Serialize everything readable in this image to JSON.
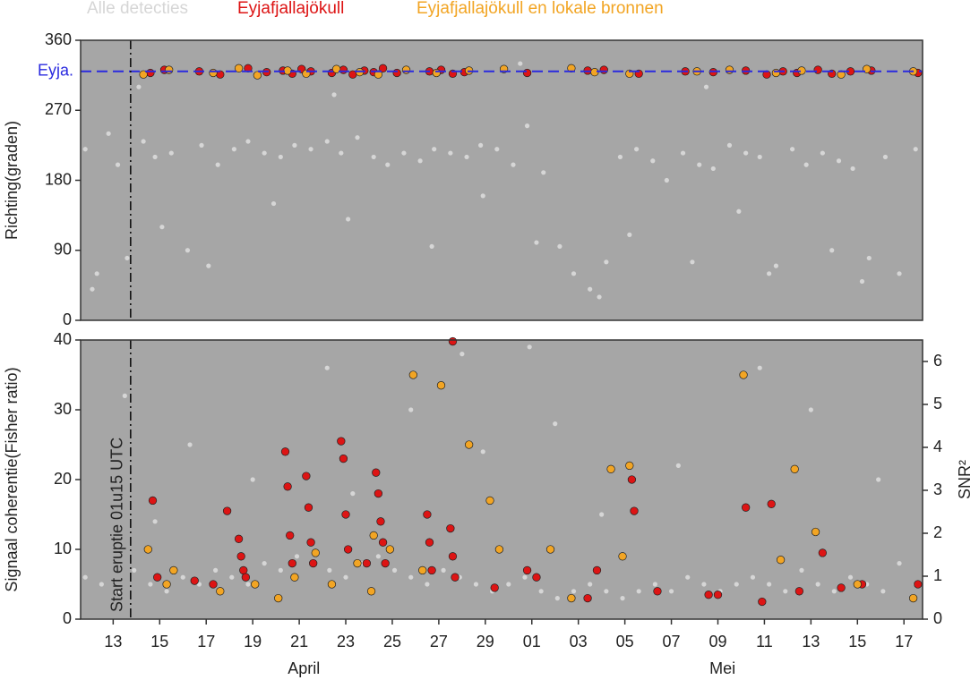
{
  "chart_data": [
    {
      "type": "scatter",
      "ylabel": "Richting(graden)",
      "xlim": [
        11.6,
        47.8
      ],
      "ylim": [
        0,
        360
      ],
      "yticks": [
        0,
        90,
        180,
        270,
        360
      ],
      "background": "#a6a6a6",
      "reference_line": {
        "value": 320,
        "label": "Eyja.",
        "color": "#2a2adf"
      },
      "series": [
        {
          "name": "Alle detecties",
          "color": "#d6d6d6",
          "x": [
            11.8,
            12.3,
            12.8,
            13.2,
            13.6,
            14.3,
            14.8,
            15.5,
            16.2,
            16.8,
            17.5,
            18.2,
            18.8,
            19.5,
            20.2,
            20.8,
            21.5,
            22.2,
            22.8,
            23.5,
            24.2,
            24.8,
            25.5,
            26.2,
            26.8,
            27.5,
            28.2,
            28.8,
            29.5,
            30.2,
            30.8,
            31.5,
            32.2,
            32.8,
            33.5,
            34.2,
            34.8,
            35.5,
            36.2,
            36.8,
            37.5,
            38.2,
            38.8,
            39.5,
            40.2,
            40.8,
            41.5,
            42.2,
            42.8,
            43.5,
            44.2,
            44.8,
            45.5,
            46.2,
            46.8,
            47.5,
            12.1,
            15.1,
            17.1,
            19.9,
            23.1,
            26.7,
            28.9,
            31.2,
            33.9,
            35.2,
            37.9,
            39.9,
            41.2,
            43.9,
            45.2,
            14.1,
            22.5,
            30.5,
            38.5
          ],
          "values": [
            220,
            60,
            240,
            200,
            80,
            230,
            210,
            215,
            90,
            225,
            200,
            220,
            230,
            215,
            210,
            225,
            220,
            230,
            215,
            235,
            210,
            200,
            215,
            205,
            220,
            215,
            210,
            225,
            220,
            200,
            250,
            190,
            95,
            60,
            40,
            75,
            210,
            220,
            205,
            180,
            215,
            200,
            195,
            225,
            215,
            210,
            70,
            220,
            200,
            215,
            205,
            195,
            80,
            210,
            60,
            220,
            40,
            120,
            70,
            150,
            130,
            95,
            160,
            100,
            30,
            110,
            75,
            140,
            60,
            90,
            50,
            300,
            290,
            330,
            300
          ]
        },
        {
          "name": "Eyjafjallajökull",
          "color": "#dd1414",
          "x": [
            14.6,
            15.2,
            16.7,
            17.6,
            18.8,
            19.6,
            20.3,
            20.7,
            21.1,
            21.5,
            22.4,
            22.9,
            23.3,
            23.8,
            24.2,
            24.6,
            25.2,
            26.6,
            27.1,
            27.6,
            28.1,
            30.8,
            33.4,
            34.1,
            35.6,
            37.6,
            38.8,
            40.2,
            41.1,
            41.8,
            42.4,
            43.3,
            43.9,
            44.7,
            45.6,
            47.6
          ],
          "values": [
            318,
            322,
            320,
            316,
            324,
            319,
            321,
            317,
            323,
            320,
            318,
            322,
            316,
            321,
            319,
            324,
            318,
            320,
            322,
            317,
            319,
            318,
            321,
            322,
            317,
            320,
            319,
            321,
            316,
            320,
            318,
            322,
            317,
            320,
            321,
            318
          ]
        },
        {
          "name": "Eyjafjallajökull en lokale bronnen",
          "color": "#f2a524",
          "x": [
            14.3,
            15.4,
            17.3,
            18.4,
            19.2,
            20.5,
            21.3,
            22.6,
            23.6,
            24.4,
            25.6,
            26.9,
            28.3,
            29.8,
            32.7,
            33.7,
            35.2,
            38.1,
            39.5,
            41.5,
            42.6,
            44.3,
            45.4,
            47.4
          ],
          "values": [
            316,
            322,
            318,
            324,
            315,
            321,
            317,
            323,
            319,
            316,
            322,
            318,
            321,
            323,
            324,
            319,
            317,
            320,
            322,
            318,
            321,
            316,
            323,
            320
          ]
        }
      ]
    },
    {
      "type": "scatter",
      "ylabel": "Signaal coherentie(Fisher ratio)",
      "y2label": "SNR²",
      "xlim": [
        11.6,
        47.8
      ],
      "ylim": [
        0,
        40
      ],
      "yticks": [
        0,
        10,
        20,
        30,
        40
      ],
      "y2lim": [
        0,
        6.5
      ],
      "y2ticks": [
        0,
        1,
        2,
        3,
        4,
        5,
        6
      ],
      "xticks": [
        13,
        15,
        17,
        19,
        21,
        23,
        25,
        27,
        29,
        {
          "value": 31,
          "label": "01"
        },
        {
          "value": 33,
          "label": "03"
        },
        {
          "value": 35,
          "label": "05"
        },
        {
          "value": 37,
          "label": "07"
        },
        {
          "value": 39,
          "label": "09"
        },
        {
          "value": 41,
          "label": "11"
        },
        {
          "value": 43,
          "label": "13"
        },
        {
          "value": 45,
          "label": "15"
        },
        {
          "value": 47,
          "label": "17"
        }
      ],
      "month_labels": [
        {
          "text": "April",
          "x": 21.2
        },
        {
          "text": "Mei",
          "x": 39.2
        }
      ],
      "background": "#a6a6a6",
      "vline": {
        "x": 13.75,
        "label": "Start eruptie 01u15 UTC"
      },
      "series": [
        {
          "name": "Alle detecties",
          "color": "#d6d6d6",
          "x": [
            11.8,
            12.5,
            13.2,
            13.9,
            14.6,
            15.3,
            16.0,
            16.7,
            17.4,
            18.1,
            18.8,
            19.5,
            20.2,
            20.9,
            21.6,
            22.3,
            23.0,
            23.7,
            24.4,
            25.1,
            25.8,
            26.5,
            27.2,
            27.9,
            28.6,
            29.3,
            30.0,
            30.7,
            31.4,
            32.1,
            32.8,
            33.5,
            34.2,
            34.9,
            35.6,
            36.3,
            37.0,
            37.7,
            38.4,
            39.1,
            39.8,
            40.5,
            41.2,
            41.9,
            42.6,
            43.3,
            44.0,
            44.7,
            45.4,
            46.1,
            46.8,
            47.5,
            13.5,
            16.3,
            19.0,
            22.2,
            23.3,
            25.8,
            28.0,
            28.9,
            32.0,
            34.0,
            37.3,
            40.8,
            43.0,
            45.9,
            14.8,
            30.9
          ],
          "values": [
            6,
            5,
            4,
            7,
            5,
            4,
            6,
            5,
            7,
            6,
            5,
            8,
            7,
            9,
            8,
            7,
            6,
            8,
            9,
            7,
            6,
            5,
            7,
            6,
            5,
            4,
            5,
            6,
            4,
            3,
            4,
            5,
            4,
            3,
            4,
            5,
            4,
            6,
            5,
            4,
            5,
            6,
            5,
            4,
            7,
            5,
            4,
            6,
            5,
            4,
            8,
            5,
            32,
            25,
            20,
            36,
            18,
            30,
            38,
            24,
            28,
            15,
            22,
            36,
            30,
            20,
            14,
            39
          ]
        },
        {
          "name": "Eyjafjallajökull",
          "color": "#dd1414",
          "x": [
            14.7,
            14.9,
            16.5,
            17.3,
            17.9,
            18.4,
            18.5,
            18.6,
            18.7,
            20.4,
            20.5,
            20.6,
            20.7,
            21.3,
            21.4,
            21.5,
            21.6,
            22.8,
            22.9,
            23.0,
            23.1,
            23.9,
            24.3,
            24.4,
            24.5,
            24.6,
            24.7,
            26.5,
            26.6,
            26.7,
            27.5,
            27.6,
            27.7,
            27.6,
            29.4,
            30.8,
            31.2,
            33.4,
            33.8,
            35.3,
            35.4,
            36.4,
            38.6,
            39.0,
            40.2,
            40.9,
            41.3,
            42.5,
            43.5,
            44.3,
            45.2,
            47.6
          ],
          "values": [
            17,
            6,
            5.5,
            5,
            15.5,
            11.5,
            9,
            7,
            6,
            24,
            19,
            12,
            8,
            20.5,
            16,
            11,
            8,
            25.5,
            23,
            15,
            10,
            8,
            21,
            18,
            14,
            11,
            8,
            15,
            11,
            7,
            13,
            9,
            6,
            39.8,
            4.5,
            7,
            6,
            3,
            7,
            20,
            15.5,
            4,
            3.5,
            3.5,
            16,
            2.5,
            16.5,
            4,
            9.5,
            4.5,
            5,
            5
          ]
        },
        {
          "name": "Eyjafjallajökull en lokale bronnen",
          "color": "#f2a524",
          "x": [
            14.5,
            15.3,
            15.6,
            17.6,
            19.1,
            20.1,
            20.8,
            21.7,
            22.4,
            23.5,
            24.1,
            24.2,
            24.9,
            25.9,
            26.3,
            27.1,
            28.3,
            29.2,
            29.6,
            31.8,
            32.7,
            34.4,
            34.9,
            35.2,
            40.1,
            41.7,
            42.3,
            43.2,
            45.0,
            47.4
          ],
          "values": [
            10,
            5,
            7,
            4,
            5,
            3,
            6,
            9.5,
            5,
            8,
            4,
            12,
            10,
            35,
            7,
            33.5,
            25,
            17,
            10,
            10,
            3,
            21.5,
            9,
            22,
            35,
            8.5,
            21.5,
            12.5,
            5,
            3
          ]
        }
      ]
    }
  ]
}
